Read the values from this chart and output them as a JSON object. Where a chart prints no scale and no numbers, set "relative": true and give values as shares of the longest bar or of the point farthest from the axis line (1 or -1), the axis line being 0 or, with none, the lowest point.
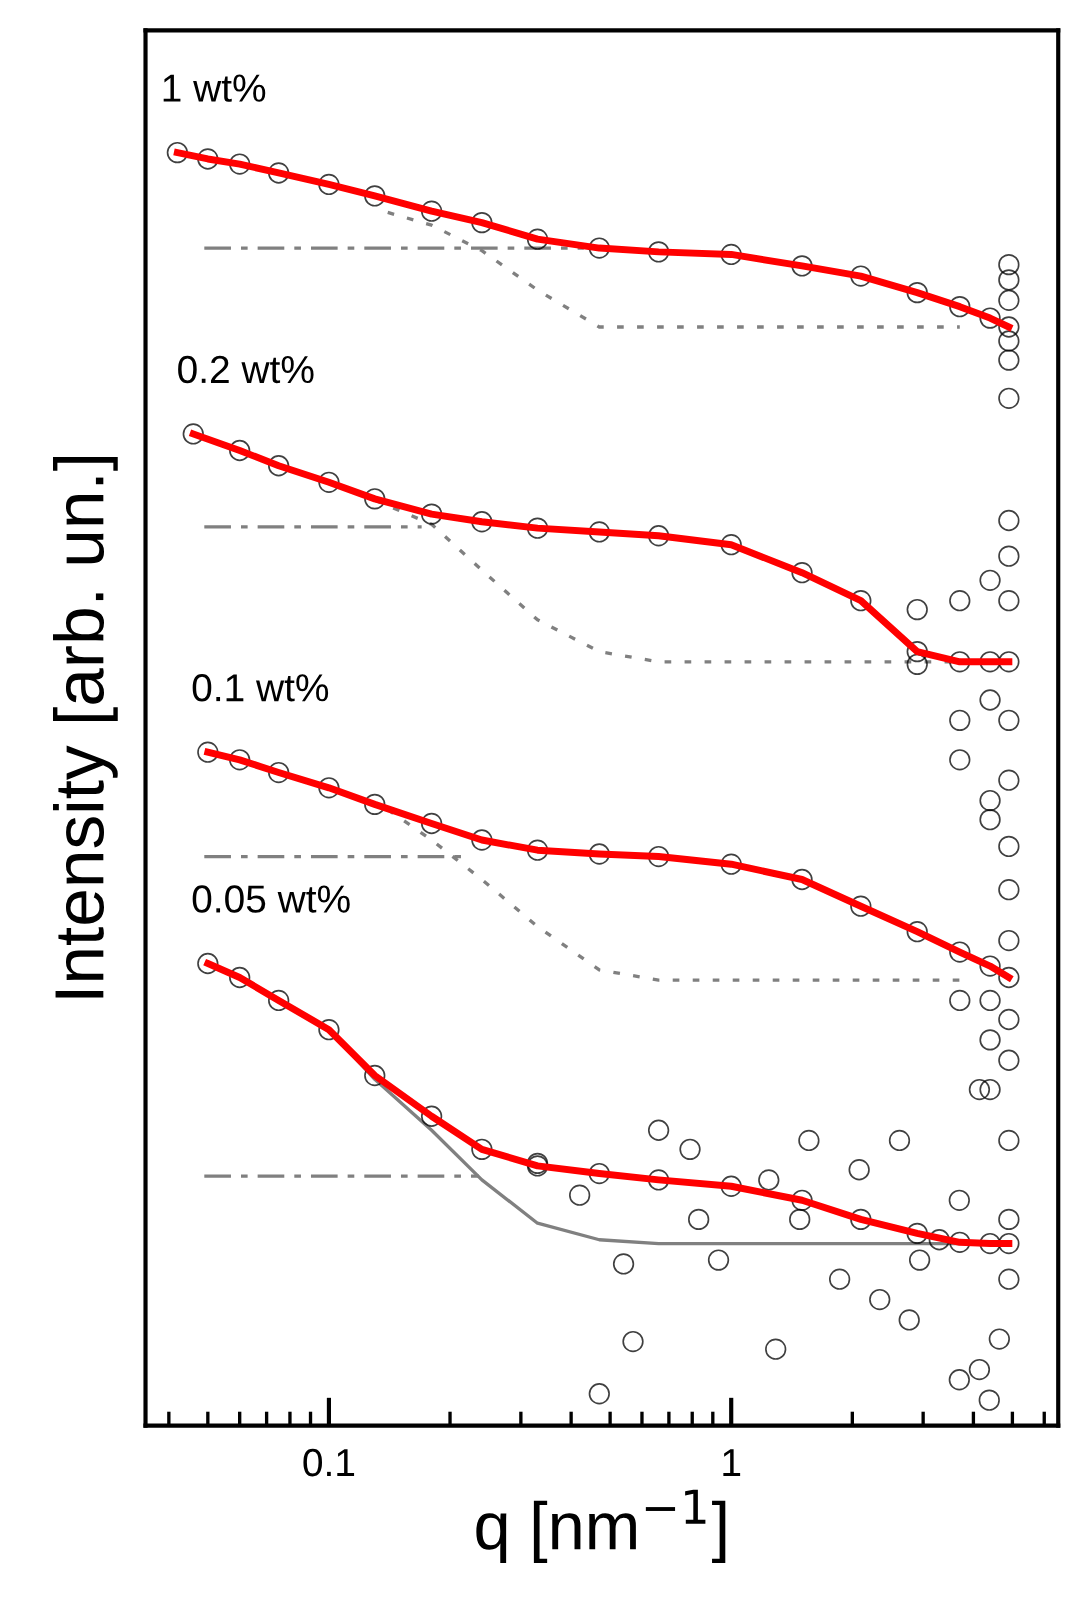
{
  "chart_data": {
    "type": "scatter",
    "relative": true,
    "xlabel": "q [nm$^{−1}$]",
    "ylabel": "Intensity [arb. un.]",
    "log": "x",
    "xlim": [
      0.035,
      6.5
    ],
    "xticks": [
      0.1,
      1
    ],
    "grid": false,
    "legend": false,
    "series": [
      {
        "type": "line",
        "line_style": "dashdot",
        "color": "#808080",
        "x": [
          0.049,
          0.43
        ],
        "values": [
          0.925,
          0.925
        ]
      },
      {
        "type": "line",
        "line_style": "dotted",
        "color": "#808080",
        "x": [
          0.14,
          0.18,
          0.24,
          0.33,
          0.47,
          1,
          3.7
        ],
        "values": [
          0.953,
          0.943,
          0.923,
          0.892,
          0.863,
          0.863,
          0.863
        ]
      },
      {
        "name": "1 wt%",
        "marker": "circle",
        "color": "#000000",
        "x": [
          0.042,
          0.05,
          0.06,
          0.075,
          0.1,
          0.13,
          0.18,
          0.24,
          0.33,
          0.47,
          0.66,
          1,
          1.5,
          2.1,
          2.9,
          3.7,
          4.4,
          4.9,
          4.9,
          4.9,
          4.9,
          4.9,
          4.9,
          4.9
        ],
        "values": [
          1.0,
          0.995,
          0.991,
          0.984,
          0.975,
          0.966,
          0.954,
          0.945,
          0.932,
          0.925,
          0.922,
          0.92,
          0.911,
          0.903,
          0.89,
          0.879,
          0.87,
          0.863,
          0.912,
          0.9,
          0.884,
          0.852,
          0.837,
          0.807
        ]
      },
      {
        "type": "line",
        "line_style": "solid",
        "color": "#ff0000",
        "x": [
          0.042,
          0.05,
          0.06,
          0.075,
          0.1,
          0.13,
          0.18,
          0.24,
          0.33,
          0.47,
          0.66,
          1,
          1.5,
          2.1,
          2.9,
          3.7,
          4.4,
          4.9
        ],
        "values": [
          1.0,
          0.995,
          0.991,
          0.984,
          0.975,
          0.966,
          0.954,
          0.945,
          0.932,
          0.925,
          0.922,
          0.92,
          0.911,
          0.903,
          0.89,
          0.879,
          0.87,
          0.863
        ]
      },
      {
        "type": "line",
        "line_style": "dashdot",
        "color": "#808080",
        "x": [
          0.049,
          0.17
        ],
        "values": [
          0.706,
          0.706
        ]
      },
      {
        "type": "line",
        "line_style": "dotted",
        "color": "#808080",
        "x": [
          0.13,
          0.18,
          0.24,
          0.33,
          0.47,
          0.66,
          3.7
        ],
        "values": [
          0.727,
          0.708,
          0.672,
          0.633,
          0.608,
          0.6,
          0.6
        ]
      },
      {
        "name": "0.2 wt%",
        "marker": "circle",
        "color": "#000000",
        "x": [
          0.046,
          0.06,
          0.075,
          0.1,
          0.13,
          0.18,
          0.24,
          0.33,
          0.47,
          0.66,
          1,
          1.5,
          2.1,
          2.9,
          3.7,
          4.4,
          4.9,
          4.9,
          4.9,
          4.9,
          4.9,
          4.9,
          4.9,
          4.4,
          4.4,
          4.4,
          4.4,
          3.7,
          3.7,
          3.7,
          2.9,
          2.9
        ],
        "values": [
          0.779,
          0.766,
          0.754,
          0.741,
          0.728,
          0.716,
          0.71,
          0.705,
          0.702,
          0.699,
          0.692,
          0.67,
          0.648,
          0.608,
          0.6,
          0.6,
          0.6,
          0.711,
          0.683,
          0.648,
          0.554,
          0.507,
          0.455,
          0.664,
          0.57,
          0.491,
          0.476,
          0.648,
          0.554,
          0.523,
          0.641,
          0.598
        ]
      },
      {
        "type": "line",
        "line_style": "solid",
        "color": "#ff0000",
        "x": [
          0.046,
          0.06,
          0.075,
          0.1,
          0.13,
          0.18,
          0.24,
          0.33,
          0.47,
          0.66,
          1,
          1.5,
          2.1,
          2.9,
          3.7,
          4.4,
          4.9
        ],
        "values": [
          0.779,
          0.766,
          0.754,
          0.741,
          0.728,
          0.716,
          0.71,
          0.705,
          0.702,
          0.699,
          0.692,
          0.67,
          0.648,
          0.608,
          0.6,
          0.6,
          0.6
        ]
      },
      {
        "type": "line",
        "line_style": "dashdot",
        "color": "#808080",
        "x": [
          0.049,
          0.22
        ],
        "values": [
          0.447,
          0.447
        ]
      },
      {
        "type": "line",
        "line_style": "dotted",
        "color": "#808080",
        "x": [
          0.14,
          0.18,
          0.24,
          0.33,
          0.47,
          0.66,
          3.7
        ],
        "values": [
          0.484,
          0.46,
          0.429,
          0.392,
          0.358,
          0.35,
          0.35
        ]
      },
      {
        "name": "0.1 wt%",
        "marker": "circle",
        "color": "#000000",
        "x": [
          0.05,
          0.06,
          0.075,
          0.1,
          0.13,
          0.18,
          0.24,
          0.33,
          0.47,
          0.66,
          1,
          1.5,
          2.1,
          2.9,
          3.7,
          4.4,
          4.9,
          4.9,
          4.9,
          4.9,
          4.9,
          4.4,
          4.4,
          4.4,
          3.7
        ],
        "values": [
          0.529,
          0.523,
          0.513,
          0.501,
          0.488,
          0.473,
          0.46,
          0.452,
          0.449,
          0.447,
          0.441,
          0.429,
          0.408,
          0.388,
          0.372,
          0.361,
          0.352,
          0.421,
          0.381,
          0.319,
          0.287,
          0.334,
          0.303,
          0.264,
          0.334
        ]
      },
      {
        "type": "line",
        "line_style": "solid",
        "color": "#ff0000",
        "x": [
          0.05,
          0.06,
          0.075,
          0.1,
          0.13,
          0.18,
          0.24,
          0.33,
          0.47,
          0.66,
          1,
          1.5,
          2.1,
          2.9,
          3.7,
          4.4,
          4.9
        ],
        "values": [
          0.529,
          0.523,
          0.513,
          0.501,
          0.488,
          0.473,
          0.46,
          0.452,
          0.449,
          0.447,
          0.441,
          0.429,
          0.408,
          0.388,
          0.372,
          0.361,
          0.352
        ]
      },
      {
        "type": "line",
        "line_style": "dashdot",
        "color": "#808080",
        "x": [
          0.049,
          0.236
        ],
        "values": [
          0.196,
          0.196
        ]
      },
      {
        "type": "line",
        "line_style": "solid",
        "color": "#808080",
        "x": [
          0.05,
          0.06,
          0.075,
          0.1,
          0.13,
          0.18,
          0.24,
          0.33,
          0.47,
          0.66,
          4.9
        ],
        "values": [
          0.363,
          0.352,
          0.334,
          0.311,
          0.272,
          0.232,
          0.193,
          0.159,
          0.146,
          0.143,
          0.143
        ]
      },
      {
        "name": "0.05 wt%",
        "marker": "circle",
        "color": "#000000",
        "x": [
          0.05,
          0.06,
          0.075,
          0.1,
          0.13,
          0.18,
          0.24,
          0.33,
          0.47,
          0.66,
          1,
          1.5,
          2.1,
          2.9,
          3.7,
          4.4,
          4.9,
          0.47,
          0.57,
          0.54,
          0.66,
          0.79,
          0.93,
          1.29,
          1.24,
          1.56,
          1.86,
          2.34,
          2.77,
          2.62,
          3.29,
          3.69,
          4.14,
          4.64,
          4.9,
          4.9,
          4.9,
          4.38,
          4.14,
          3.69,
          2.94,
          2.08,
          1.48,
          0.83,
          0.42,
          0.33
        ],
        "values": [
          0.363,
          0.352,
          0.334,
          0.311,
          0.275,
          0.243,
          0.217,
          0.204,
          0.198,
          0.193,
          0.188,
          0.177,
          0.162,
          0.151,
          0.144,
          0.143,
          0.143,
          0.025,
          0.066,
          0.127,
          0.232,
          0.217,
          0.13,
          0.06,
          0.193,
          0.224,
          0.115,
          0.099,
          0.083,
          0.224,
          0.146,
          0.036,
          0.044,
          0.068,
          0.224,
          0.162,
          0.115,
          0.02,
          0.264,
          0.177,
          0.13,
          0.201,
          0.162,
          0.162,
          0.181,
          0.206
        ]
      },
      {
        "type": "line",
        "line_style": "solid",
        "color": "#ff0000",
        "x": [
          0.05,
          0.06,
          0.075,
          0.1,
          0.13,
          0.18,
          0.24,
          0.33,
          0.47,
          0.66,
          1,
          1.5,
          2.1,
          2.9,
          3.7,
          4.4,
          4.9
        ],
        "values": [
          0.363,
          0.352,
          0.334,
          0.311,
          0.275,
          0.243,
          0.217,
          0.204,
          0.198,
          0.193,
          0.188,
          0.177,
          0.162,
          0.151,
          0.144,
          0.143,
          0.143
        ]
      }
    ]
  }
}
